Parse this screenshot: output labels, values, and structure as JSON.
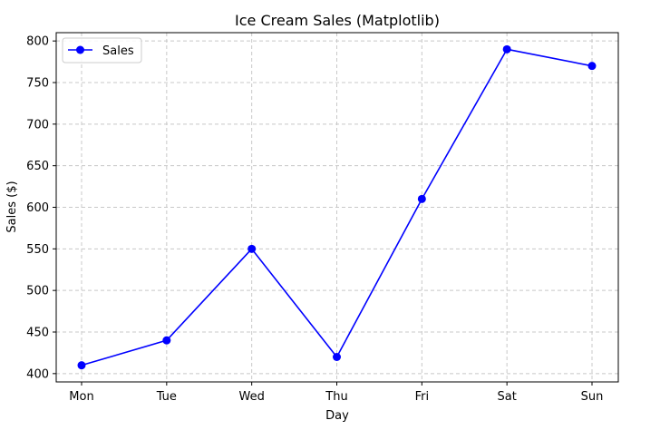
{
  "chart_data": {
    "type": "line",
    "title": "Ice Cream Sales (Matplotlib)",
    "xlabel": "Day",
    "ylabel": "Sales ($)",
    "categories": [
      "Mon",
      "Tue",
      "Wed",
      "Thu",
      "Fri",
      "Sat",
      "Sun"
    ],
    "series": [
      {
        "name": "Sales",
        "values": [
          410,
          440,
          550,
          420,
          610,
          790,
          770
        ],
        "color": "#0000ff",
        "marker": "circle"
      }
    ],
    "ylim": [
      390,
      810
    ],
    "yticks": [
      400,
      450,
      500,
      550,
      600,
      650,
      700,
      750,
      800
    ],
    "grid": true,
    "grid_color": "#c8c8c8",
    "legend_position": "top-left"
  }
}
